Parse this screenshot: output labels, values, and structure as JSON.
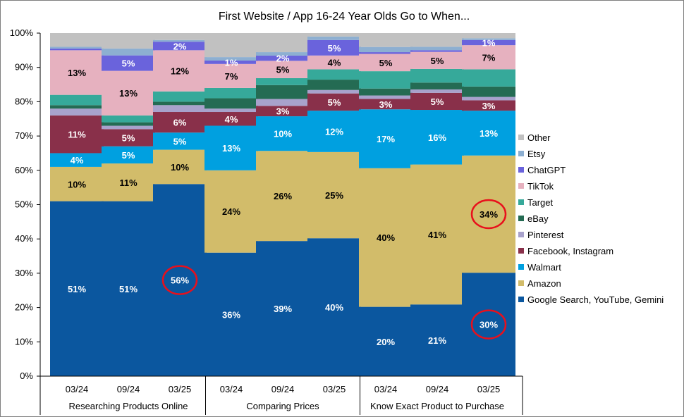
{
  "chart_data": {
    "type": "bar",
    "stacked": true,
    "title": "First Website / App 16-24 Year Olds Go to When...",
    "y_ticks": [
      "0%",
      "10%",
      "20%",
      "30%",
      "40%",
      "50%",
      "60%",
      "70%",
      "80%",
      "90%",
      "100%"
    ],
    "ylim": [
      0,
      100
    ],
    "groups": [
      {
        "label": "Researching Products Online",
        "periods": [
          "03/24",
          "09/24",
          "03/25"
        ]
      },
      {
        "label": "Comparing Prices",
        "periods": [
          "03/24",
          "09/24",
          "03/25"
        ]
      },
      {
        "label": "Know Exact Product to Purchase",
        "periods": [
          "03/24",
          "09/24",
          "03/25"
        ]
      }
    ],
    "series": [
      {
        "name": "Google Search, YouTube, Gemini",
        "color": "#0b579f",
        "text_color": "#ffffff",
        "values": [
          51,
          51,
          56,
          36,
          39,
          40,
          20,
          21,
          30
        ],
        "labels": [
          "51%",
          "51%",
          "56%",
          "36%",
          "39%",
          "40%",
          "20%",
          "21%",
          "30%"
        ]
      },
      {
        "name": "Amazon",
        "color": "#d2bc6a",
        "text_color": "#000000",
        "values": [
          10,
          11,
          10,
          24,
          26,
          25,
          40,
          41,
          34
        ],
        "labels": [
          "10%",
          "11%",
          "10%",
          "24%",
          "26%",
          "25%",
          "40%",
          "41%",
          "34%"
        ]
      },
      {
        "name": "Walmart",
        "color": "#00a0e0",
        "text_color": "#ffffff",
        "values": [
          4,
          5,
          5,
          13,
          10,
          12,
          17,
          16,
          13
        ],
        "labels": [
          "4%",
          "5%",
          "5%",
          "13%",
          "10%",
          "12%",
          "17%",
          "16%",
          "13%"
        ]
      },
      {
        "name": "Facebook, Instagram",
        "color": "#89304a",
        "text_color": "#ffffff",
        "values": [
          11,
          5,
          6,
          4,
          3,
          5,
          3,
          5,
          3
        ],
        "labels": [
          "11%",
          "5%",
          "6%",
          "4%",
          "3%",
          "5%",
          "3%",
          "5%",
          "3%"
        ]
      },
      {
        "name": "Pinterest",
        "color": "#a8a2cc",
        "text_color": "#000000",
        "values": [
          2,
          1,
          2,
          1,
          2,
          1,
          1,
          1,
          1
        ],
        "labels": [
          "",
          "",
          "",
          "",
          "",
          "",
          "",
          "",
          ""
        ]
      },
      {
        "name": "eBay",
        "color": "#246b53",
        "text_color": "#ffffff",
        "values": [
          1,
          1,
          1,
          3,
          4,
          3,
          2,
          2,
          3
        ],
        "labels": [
          "",
          "",
          "",
          "",
          "",
          "",
          "",
          "",
          ""
        ]
      },
      {
        "name": "Target",
        "color": "#36a99a",
        "text_color": "#ffffff",
        "values": [
          3,
          2,
          3,
          3,
          2,
          3,
          5,
          4,
          5
        ],
        "labels": [
          "",
          "",
          "",
          "",
          "",
          "",
          "",
          "",
          ""
        ]
      },
      {
        "name": "TikTok",
        "color": "#e6b1bf",
        "text_color": "#000000",
        "values": [
          13,
          13,
          12,
          7,
          5,
          4,
          5,
          5,
          7
        ],
        "labels": [
          "13%",
          "13%",
          "12%",
          "7%",
          "5%",
          "4%",
          "5%",
          "5%",
          "7%"
        ]
      },
      {
        "name": "ChatGPT",
        "color": "#6a63dc",
        "text_color": "#ffffff",
        "values": [
          0.5,
          4.5,
          2.5,
          1,
          1.5,
          4.5,
          0.5,
          0.5,
          1.5
        ],
        "labels": [
          "",
          "5%",
          "2%",
          "1%",
          "2%",
          "5%",
          "",
          "",
          "1%"
        ]
      },
      {
        "name": "Etsy",
        "color": "#8dafd1",
        "text_color": "#000000",
        "values": [
          0.5,
          2,
          0.5,
          1,
          1,
          1,
          1.5,
          1,
          0.5
        ],
        "labels": [
          "",
          "",
          "",
          "",
          "",
          "",
          "",
          "",
          ""
        ]
      },
      {
        "name": "Other",
        "color": "#c1c1c1",
        "text_color": "#000000",
        "values": [
          4,
          4.5,
          2,
          7,
          5.5,
          1,
          4,
          4,
          1.5
        ],
        "labels": [
          "",
          "",
          "",
          "",
          "",
          "",
          "",
          "",
          ""
        ]
      }
    ],
    "highlighted_labels": [
      {
        "series": "Google Search, YouTube, Gemini",
        "bar": 2
      },
      {
        "series": "Amazon",
        "bar": 8
      },
      {
        "series": "Google Search, YouTube, Gemini",
        "bar": 8
      }
    ],
    "legend_position": "right",
    "grid": false
  }
}
